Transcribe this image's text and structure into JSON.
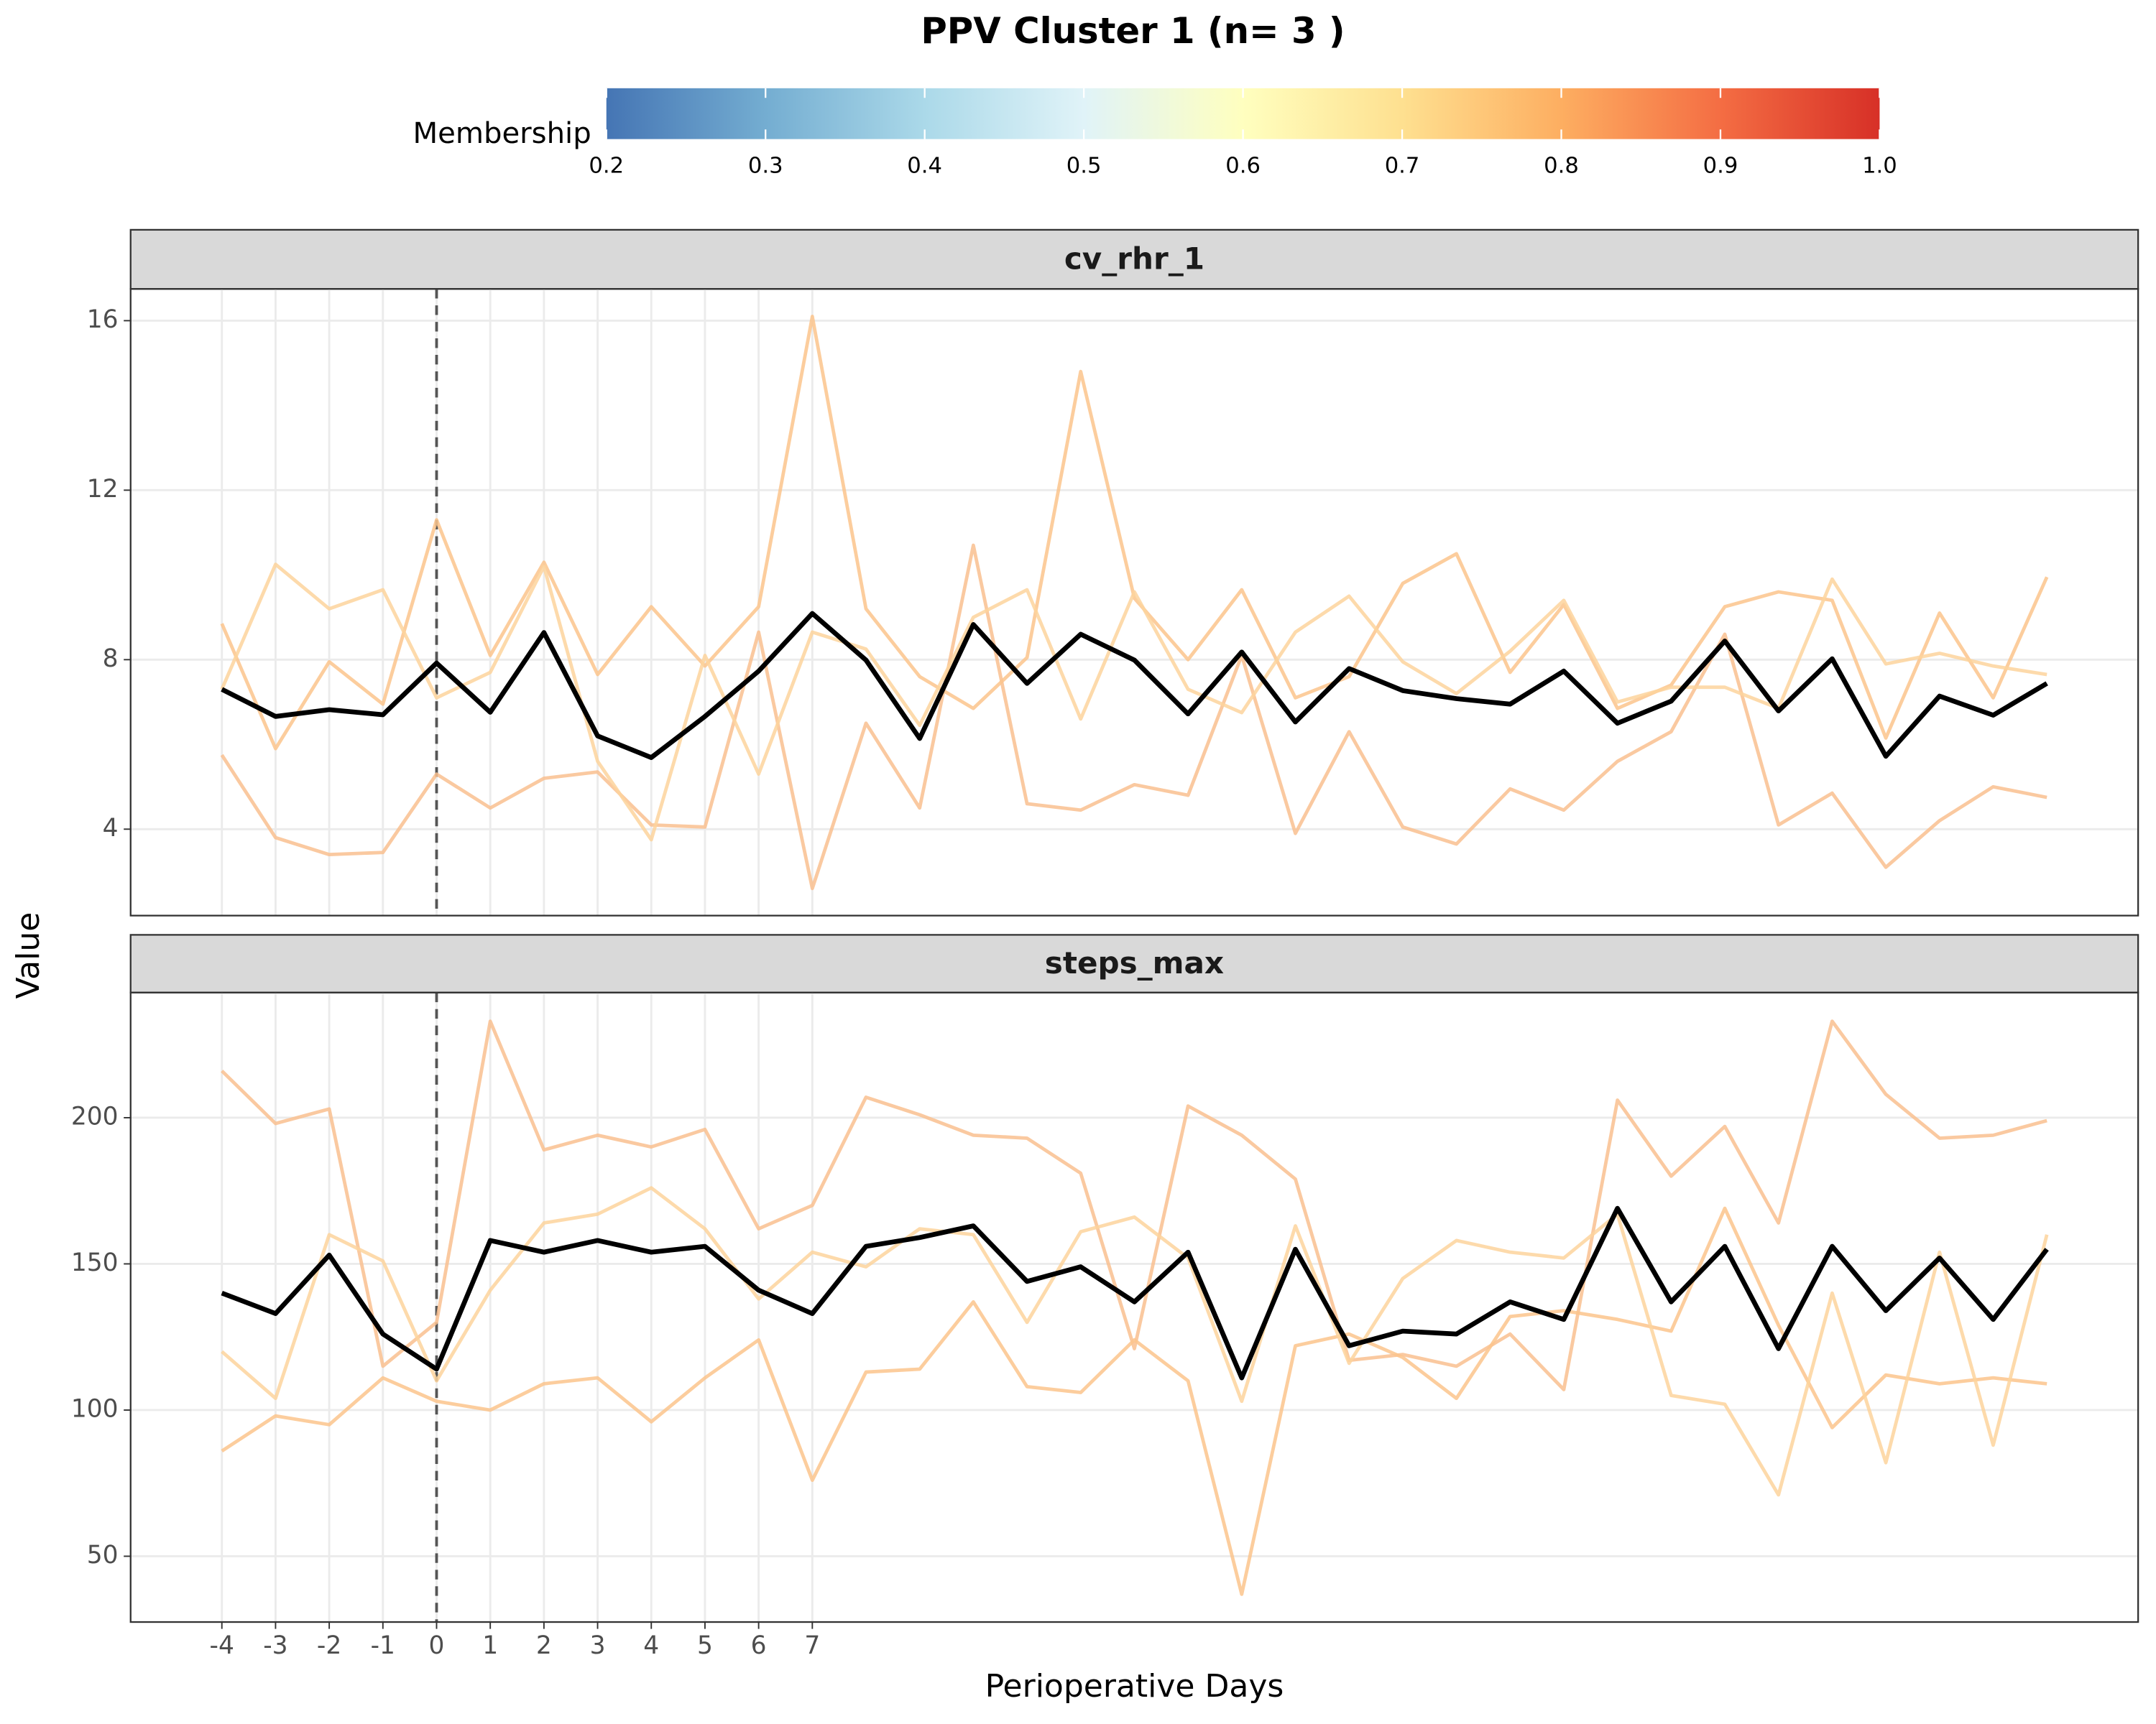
{
  "figure": {
    "title": "PPV Cluster 1 (n= 3 )",
    "x_label": "Perioperative Days",
    "y_label": "Value",
    "colorbar": {
      "title": "Membership",
      "lim": [
        0.2,
        1.0
      ],
      "ticks": [
        0.2,
        0.3,
        0.4,
        0.5,
        0.6,
        0.7,
        0.8,
        0.9,
        {
          "value": 1,
          "label": "1.0"
        }
      ],
      "colors": [
        "#4575b4",
        "#74add1",
        "#abd9e9",
        "#e0f3f8",
        "#ffffbf",
        "#fee090",
        "#fdae61",
        "#f46d43",
        "#d73027"
      ]
    },
    "vline": 0
  },
  "chart_data": [
    {
      "type": "line",
      "title": "cv_rhr_1",
      "x": [
        -4,
        -3,
        -2,
        -1,
        0,
        1,
        2,
        3,
        4,
        5,
        6,
        7,
        8,
        9,
        10,
        11,
        12,
        13,
        14,
        15,
        16,
        17,
        18,
        19,
        20,
        21,
        22,
        23,
        24,
        25,
        26,
        27,
        28,
        29,
        30
      ],
      "xlim": [
        -5.7,
        31.7
      ],
      "xticks": [
        -4,
        -3,
        -2,
        -1,
        0,
        1,
        2,
        3,
        4,
        5,
        6,
        7
      ],
      "ylim": [
        1.96,
        16.75
      ],
      "yticks": [
        4,
        8,
        12,
        16
      ],
      "grid": true,
      "series": [
        {
          "color": "#f9bf8f",
          "linewidth": 2.5,
          "values": [
            5.75,
            3.8,
            3.4,
            3.45,
            5.3,
            4.5,
            5.2,
            5.35,
            4.1,
            4.05,
            8.65,
            2.6,
            6.5,
            4.5,
            10.7,
            4.6,
            4.45,
            5.05,
            4.8,
            8.1,
            3.9,
            6.3,
            4.05,
            3.65,
            4.95,
            4.45,
            5.6,
            6.3,
            8.6,
            4.1,
            4.85,
            3.1,
            4.2,
            5.0,
            4.75
          ]
        },
        {
          "color": "#fbc48c",
          "linewidth": 2.5,
          "values": [
            8.85,
            5.9,
            7.95,
            6.95,
            11.3,
            8.1,
            10.3,
            7.65,
            9.25,
            7.85,
            9.25,
            16.1,
            9.2,
            7.6,
            6.85,
            8.05,
            14.8,
            9.45,
            8.0,
            9.65,
            7.1,
            7.6,
            9.8,
            10.5,
            7.7,
            9.3,
            6.85,
            7.4,
            9.25,
            9.6,
            9.4,
            6.15,
            9.1,
            7.1,
            9.95
          ]
        },
        {
          "color": "#fdd49c",
          "linewidth": 2.5,
          "values": [
            7.3,
            10.25,
            9.2,
            9.65,
            7.1,
            7.7,
            10.2,
            5.6,
            3.75,
            8.1,
            5.3,
            8.65,
            8.25,
            6.45,
            9.0,
            9.65,
            6.6,
            9.6,
            7.3,
            6.75,
            8.65,
            9.5,
            7.95,
            7.2,
            8.2,
            9.4,
            7.0,
            7.35,
            7.35,
            6.85,
            9.9,
            7.9,
            8.15,
            7.85,
            7.65
          ]
        },
        {
          "color": "#000000",
          "linewidth": 3.5,
          "values": [
            7.3,
            6.66,
            6.82,
            6.7,
            7.92,
            6.76,
            8.64,
            6.2,
            5.69,
            6.66,
            7.73,
            9.09,
            7.99,
            6.14,
            8.83,
            7.44,
            8.6,
            7.99,
            6.72,
            8.18,
            6.53,
            7.79,
            7.27,
            7.08,
            6.95,
            7.73,
            6.5,
            7.02,
            8.44,
            6.79,
            8.02,
            5.72,
            7.14,
            6.69,
            7.44
          ]
        }
      ]
    },
    {
      "type": "line",
      "title": "steps_max",
      "x": [
        -4,
        -3,
        -2,
        -1,
        0,
        1,
        2,
        3,
        4,
        5,
        6,
        7,
        8,
        9,
        10,
        11,
        12,
        13,
        14,
        15,
        16,
        17,
        18,
        19,
        20,
        21,
        22,
        23,
        24,
        25,
        26,
        27,
        28,
        29,
        30
      ],
      "xlim": [
        -5.7,
        31.7
      ],
      "xticks": [
        -4,
        -3,
        -2,
        -1,
        0,
        1,
        2,
        3,
        4,
        5,
        6,
        7
      ],
      "ylim": [
        27.5,
        242.8
      ],
      "yticks": [
        50,
        100,
        150,
        200
      ],
      "grid": true,
      "series": [
        {
          "color": "#f9bf8f",
          "linewidth": 2.5,
          "values": [
            216,
            198,
            203,
            115,
            130,
            233,
            189,
            194,
            190,
            196,
            162,
            170,
            207,
            201,
            194,
            193,
            181,
            121,
            204,
            194,
            179,
            117,
            119,
            115,
            126,
            107,
            206,
            180,
            197,
            164,
            233,
            208,
            193,
            194,
            199
          ]
        },
        {
          "color": "#fbc48c",
          "linewidth": 2.5,
          "values": [
            86,
            98,
            95,
            111,
            103,
            100,
            109,
            111,
            96,
            111,
            124,
            76,
            113,
            114,
            137,
            108,
            106,
            124,
            110,
            37,
            122,
            126,
            118,
            104,
            132,
            134,
            131,
            127,
            169,
            129,
            94,
            112,
            109,
            111,
            109
          ]
        },
        {
          "color": "#fdd49c",
          "linewidth": 2.5,
          "values": [
            120,
            104,
            160,
            151,
            110,
            141,
            164,
            167,
            176,
            162,
            138,
            154,
            149,
            162,
            160,
            130,
            161,
            166,
            152,
            103,
            163,
            116,
            145,
            158,
            154,
            152,
            167,
            105,
            102,
            71,
            140,
            82,
            154,
            88,
            160
          ]
        },
        {
          "color": "#000000",
          "linewidth": 3.5,
          "values": [
            140,
            133,
            153,
            126,
            114,
            158,
            154,
            158,
            154,
            156,
            141,
            133,
            156,
            159,
            163,
            144,
            149,
            137,
            154,
            111,
            155,
            122,
            127,
            126,
            137,
            131,
            169,
            137,
            156,
            121,
            156,
            134,
            152,
            131,
            155
          ]
        }
      ]
    }
  ]
}
